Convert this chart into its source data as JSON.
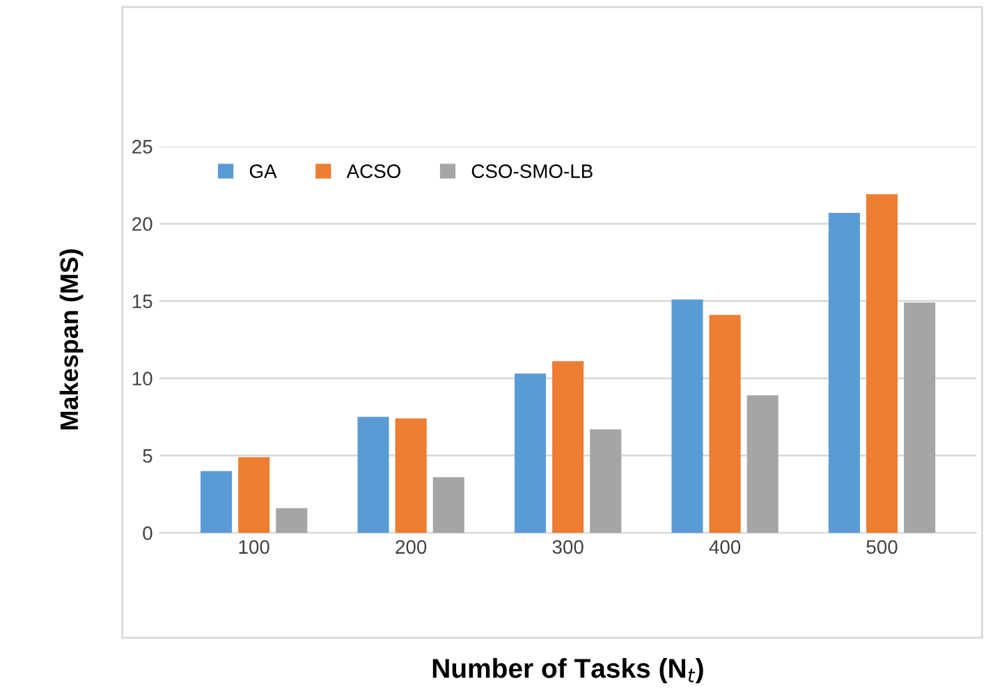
{
  "chart_data": {
    "type": "bar",
    "xlabel": "Number of Tasks (N$_{t}$)",
    "ylabel": "Makespan (MS)",
    "categories": [
      "100",
      "200",
      "300",
      "400",
      "500"
    ],
    "series": [
      {
        "name": "GA",
        "color": "#5b9bd5",
        "values": [
          4.0,
          7.5,
          10.3,
          15.1,
          20.7
        ]
      },
      {
        "name": "ACSO",
        "color": "#ed7d31",
        "values": [
          4.9,
          7.4,
          11.1,
          14.1,
          21.9
        ]
      },
      {
        "name": "CSO-SMO-LB",
        "color": "#a5a5a5",
        "values": [
          1.6,
          3.6,
          6.7,
          8.9,
          14.9
        ]
      }
    ],
    "ylim": [
      0,
      25
    ],
    "yticks": [
      0,
      5,
      10,
      15,
      20,
      25
    ],
    "grid": "y",
    "legend": "top left"
  }
}
